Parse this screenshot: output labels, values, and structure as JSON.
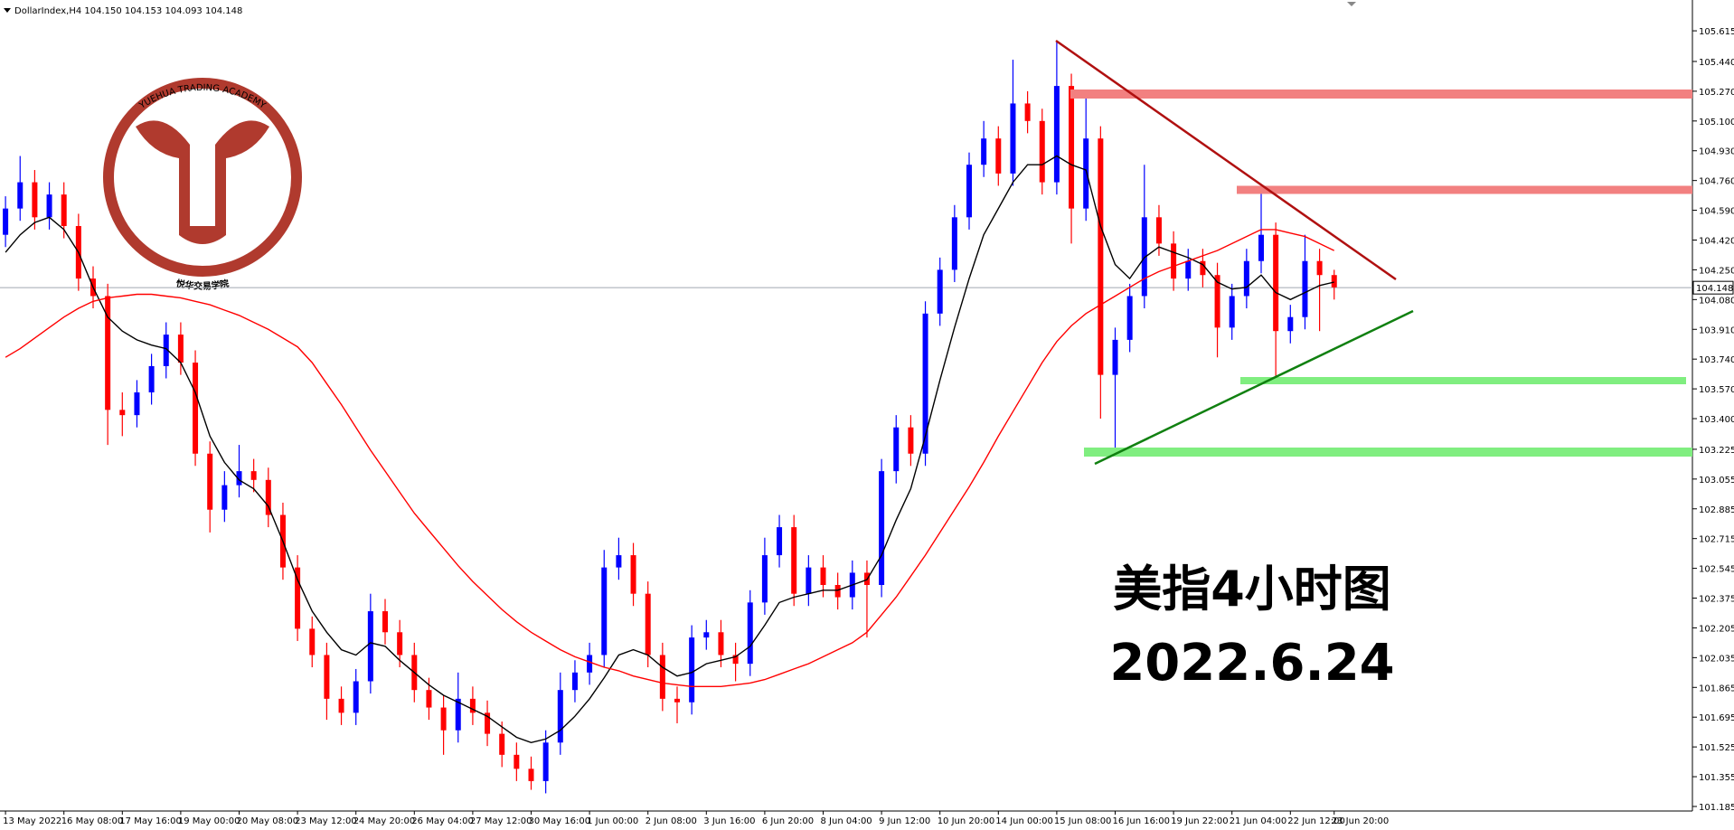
{
  "chart_data": {
    "type": "candlestick",
    "title": "DollarIndex,H4  104.150 104.153 104.093 104.148",
    "categories": [
      "13 May 2022",
      null,
      null,
      null,
      "16 May 08:00",
      null,
      null,
      null,
      "17 May 16:00",
      null,
      null,
      null,
      "19 May 00:00",
      null,
      null,
      null,
      "20 May 08:00",
      null,
      null,
      null,
      "23 May 12:00",
      null,
      null,
      null,
      "24 May 20:00",
      null,
      null,
      null,
      "26 May 04:00",
      null,
      null,
      null,
      "27 May 12:00",
      null,
      null,
      null,
      "30 May 16:00",
      null,
      null,
      null,
      "1 Jun 00:00",
      null,
      null,
      null,
      "2 Jun 08:00",
      null,
      null,
      null,
      "3 Jun 16:00",
      null,
      null,
      null,
      "6 Jun 20:00",
      null,
      null,
      null,
      "8 Jun 04:00",
      null,
      null,
      null,
      "9 Jun 12:00",
      null,
      null,
      null,
      "10 Jun 20:00",
      null,
      null,
      null,
      "14 Jun 00:00",
      null,
      null,
      null,
      "15 Jun 08:00",
      null,
      null,
      null,
      "16 Jun 16:00",
      null,
      null,
      null,
      "19 Jun 22:00",
      null,
      null,
      null,
      "21 Jun 04:00",
      null,
      null,
      null,
      "22 Jun 12:00",
      null,
      null,
      "23 Jun 20:00"
    ],
    "open": [
      104.45,
      104.6,
      104.75,
      104.55,
      104.68,
      104.5,
      104.2,
      104.1,
      103.45,
      103.42,
      103.55,
      103.7,
      103.88,
      103.72,
      103.2,
      102.88,
      103.02,
      103.1,
      103.05,
      102.85,
      102.55,
      102.2,
      102.05,
      101.8,
      101.72,
      101.9,
      102.3,
      102.18,
      102.05,
      101.85,
      101.75,
      101.62,
      101.8,
      101.72,
      101.6,
      101.48,
      101.4,
      101.33,
      101.55,
      101.85,
      101.95,
      102.05,
      102.55,
      102.62,
      102.4,
      102.05,
      101.8,
      101.78,
      102.15,
      102.18,
      102.05,
      102.0,
      102.35,
      102.62,
      102.78,
      102.4,
      102.55,
      102.45,
      102.38,
      102.52,
      102.45,
      103.1,
      103.35,
      103.2,
      104.0,
      104.25,
      104.55,
      104.85,
      105.0,
      104.8,
      105.2,
      105.1,
      104.75,
      105.3,
      104.6,
      105.0,
      103.65,
      103.85,
      104.1,
      104.55,
      104.4,
      104.2,
      104.3,
      104.22,
      103.92,
      104.1,
      104.3,
      104.45,
      103.9,
      103.98,
      104.3,
      104.22
    ],
    "high": [
      104.67,
      104.9,
      104.82,
      104.75,
      104.75,
      104.57,
      104.27,
      104.17,
      103.55,
      103.62,
      103.77,
      103.95,
      103.95,
      103.79,
      103.27,
      103.1,
      103.25,
      103.17,
      103.12,
      102.92,
      102.62,
      102.27,
      102.12,
      101.87,
      101.97,
      102.4,
      102.37,
      102.25,
      102.12,
      101.92,
      101.82,
      101.95,
      101.87,
      101.79,
      101.67,
      101.55,
      101.47,
      101.62,
      101.95,
      102.02,
      102.12,
      102.65,
      102.72,
      102.69,
      102.47,
      102.12,
      101.87,
      102.22,
      102.25,
      102.25,
      102.12,
      102.42,
      102.72,
      102.85,
      102.85,
      102.62,
      102.62,
      102.52,
      102.59,
      102.59,
      103.17,
      103.42,
      103.42,
      104.07,
      104.32,
      104.62,
      104.92,
      105.1,
      105.07,
      105.45,
      105.27,
      105.17,
      105.55,
      105.37,
      105.25,
      105.07,
      103.92,
      104.17,
      104.85,
      104.62,
      104.47,
      104.37,
      104.37,
      104.29,
      104.17,
      104.37,
      104.7,
      104.52,
      104.05,
      104.45,
      104.37,
      104.25
    ],
    "low": [
      104.38,
      104.53,
      104.48,
      104.48,
      104.43,
      104.13,
      104.03,
      103.25,
      103.3,
      103.35,
      103.48,
      103.63,
      103.65,
      103.13,
      102.75,
      102.81,
      102.95,
      102.98,
      102.78,
      102.48,
      102.13,
      101.98,
      101.68,
      101.65,
      101.65,
      101.83,
      102.11,
      101.98,
      101.78,
      101.68,
      101.48,
      101.55,
      101.65,
      101.53,
      101.41,
      101.33,
      101.28,
      101.26,
      101.48,
      101.78,
      101.88,
      101.98,
      102.48,
      102.33,
      101.98,
      101.73,
      101.66,
      101.71,
      102.08,
      101.98,
      101.9,
      101.93,
      102.28,
      102.55,
      102.33,
      102.33,
      102.38,
      102.31,
      102.31,
      102.15,
      102.38,
      103.03,
      103.13,
      103.13,
      103.93,
      104.18,
      104.48,
      104.78,
      104.73,
      104.73,
      105.03,
      104.68,
      104.68,
      104.4,
      104.53,
      103.4,
      103.2,
      103.78,
      104.03,
      104.33,
      104.13,
      104.13,
      104.15,
      103.75,
      103.85,
      104.03,
      104.23,
      103.6,
      103.83,
      103.91,
      103.9,
      104.08
    ],
    "close": [
      104.6,
      104.75,
      104.55,
      104.68,
      104.5,
      104.2,
      104.1,
      103.45,
      103.42,
      103.55,
      103.7,
      103.88,
      103.72,
      103.2,
      102.88,
      103.02,
      103.1,
      103.05,
      102.85,
      102.55,
      102.2,
      102.05,
      101.8,
      101.72,
      101.9,
      102.3,
      102.18,
      102.05,
      101.85,
      101.75,
      101.62,
      101.8,
      101.72,
      101.6,
      101.48,
      101.4,
      101.33,
      101.55,
      101.85,
      101.95,
      102.05,
      102.55,
      102.62,
      102.4,
      102.05,
      101.8,
      101.78,
      102.15,
      102.18,
      102.05,
      102.0,
      102.35,
      102.62,
      102.78,
      102.4,
      102.55,
      102.45,
      102.38,
      102.52,
      102.45,
      103.1,
      103.35,
      103.2,
      104.0,
      104.25,
      104.55,
      104.85,
      105.0,
      104.8,
      105.2,
      105.1,
      104.75,
      105.3,
      104.6,
      105.0,
      103.65,
      103.85,
      104.1,
      104.55,
      104.4,
      104.2,
      104.3,
      104.22,
      103.92,
      104.1,
      104.3,
      104.45,
      103.9,
      103.98,
      104.3,
      104.22,
      104.15
    ],
    "up_color": "#0000ff",
    "down_color": "#ff0000",
    "overlays": [
      {
        "color": "#000000",
        "values": [
          104.35,
          104.45,
          104.52,
          104.55,
          104.48,
          104.35,
          104.15,
          103.98,
          103.9,
          103.85,
          103.82,
          103.8,
          103.72,
          103.55,
          103.3,
          103.15,
          103.05,
          103.0,
          102.9,
          102.7,
          102.48,
          102.3,
          102.18,
          102.08,
          102.05,
          102.12,
          102.1,
          102.02,
          101.95,
          101.88,
          101.82,
          101.78,
          101.74,
          101.7,
          101.64,
          101.58,
          101.55,
          101.57,
          101.62,
          101.7,
          101.8,
          101.92,
          102.05,
          102.08,
          102.05,
          101.98,
          101.93,
          101.95,
          102.0,
          102.02,
          102.04,
          102.1,
          102.22,
          102.35,
          102.38,
          102.4,
          102.42,
          102.42,
          102.45,
          102.48,
          102.62,
          102.82,
          103.0,
          103.3,
          103.62,
          103.92,
          104.2,
          104.45,
          104.6,
          104.75,
          104.85,
          104.85,
          104.9,
          104.85,
          104.82,
          104.5,
          104.28,
          104.2,
          104.32,
          104.38,
          104.35,
          104.32,
          104.28,
          104.18,
          104.14,
          104.15,
          104.22,
          104.12,
          104.08,
          104.12,
          104.16,
          104.18
        ]
      },
      {
        "color": "#ff0000",
        "values": [
          103.75,
          103.8,
          103.86,
          103.92,
          103.98,
          104.03,
          104.07,
          104.09,
          104.1,
          104.11,
          104.11,
          104.1,
          104.09,
          104.07,
          104.05,
          104.02,
          103.99,
          103.95,
          103.91,
          103.86,
          103.81,
          103.72,
          103.6,
          103.48,
          103.35,
          103.22,
          103.1,
          102.98,
          102.86,
          102.76,
          102.66,
          102.56,
          102.47,
          102.39,
          102.31,
          102.24,
          102.18,
          102.13,
          102.08,
          102.04,
          102.01,
          101.98,
          101.96,
          101.93,
          101.91,
          101.89,
          101.88,
          101.87,
          101.87,
          101.87,
          101.88,
          101.89,
          101.91,
          101.94,
          101.97,
          102.0,
          102.04,
          102.08,
          102.12,
          102.18,
          102.28,
          102.38,
          102.5,
          102.62,
          102.75,
          102.88,
          103.01,
          103.15,
          103.3,
          103.44,
          103.58,
          103.72,
          103.84,
          103.93,
          104.0,
          104.05,
          104.1,
          104.15,
          104.2,
          104.24,
          104.27,
          104.3,
          104.33,
          104.36,
          104.4,
          104.44,
          104.48,
          104.48,
          104.46,
          104.44,
          104.4,
          104.36
        ]
      }
    ],
    "ylim": [
      101.159,
      105.791
    ],
    "yticks": [
      105.615,
      {
        "value": 105.44,
        "label": "105.440"
      },
      {
        "value": 105.27,
        "label": "105.270"
      },
      {
        "value": 105.1,
        "label": "105.100"
      },
      {
        "value": 104.93,
        "label": "104.930"
      },
      {
        "value": 104.76,
        "label": "104.760"
      },
      {
        "value": 104.59,
        "label": "104.590"
      },
      {
        "value": 104.42,
        "label": "104.420"
      },
      {
        "value": 104.25,
        "label": "104.250"
      },
      {
        "value": 104.08,
        "label": "104.080"
      },
      {
        "value": 103.91,
        "label": "103.910"
      },
      {
        "value": 103.74,
        "label": "103.740"
      },
      {
        "value": 103.57,
        "label": "103.570"
      },
      {
        "value": 103.4,
        "label": "103.400"
      },
      103.225,
      103.055,
      102.885,
      102.715,
      102.545,
      102.375,
      102.205,
      102.035,
      101.865,
      101.695,
      101.525,
      101.355,
      101.185
    ],
    "last_price": 104.148,
    "grid": false,
    "annotations": [
      "美指4小时图",
      "2022.6.24"
    ]
  },
  "logo": {
    "name_en": "YUEHUA TRADING ACADEMY",
    "name_cn": "悦华交易学院"
  }
}
